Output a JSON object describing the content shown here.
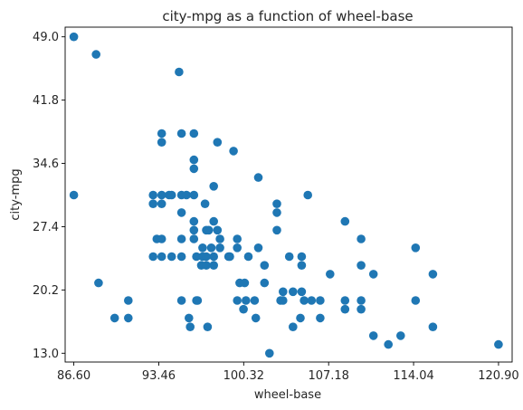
{
  "chart_data": {
    "type": "scatter",
    "title": "city-mpg as a function of wheel-base",
    "xlabel": "wheel-base",
    "ylabel": "city-mpg",
    "xlim": [
      85.9,
      122.0
    ],
    "ylim": [
      12.0,
      50.1
    ],
    "xticks": [
      "86.60",
      "93.46",
      "100.32",
      "107.18",
      "114.04",
      "120.90"
    ],
    "yticks": [
      "13.0",
      "20.2",
      "27.4",
      "34.6",
      "41.8",
      "49.0"
    ],
    "grid": false,
    "marker_color": "#1f77b4",
    "points": [
      [
        86.6,
        49
      ],
      [
        86.6,
        31
      ],
      [
        88.4,
        47
      ],
      [
        88.6,
        21
      ],
      [
        89.9,
        17
      ],
      [
        91.0,
        19
      ],
      [
        91.0,
        17
      ],
      [
        93.0,
        31
      ],
      [
        93.0,
        30
      ],
      [
        93.0,
        24
      ],
      [
        93.3,
        26
      ],
      [
        93.7,
        38
      ],
      [
        93.7,
        37
      ],
      [
        93.7,
        31
      ],
      [
        93.7,
        30
      ],
      [
        93.7,
        26
      ],
      [
        93.7,
        24
      ],
      [
        94.3,
        31
      ],
      [
        94.5,
        31
      ],
      [
        94.5,
        24
      ],
      [
        95.1,
        45
      ],
      [
        95.3,
        38
      ],
      [
        95.3,
        31
      ],
      [
        95.3,
        29
      ],
      [
        95.3,
        26
      ],
      [
        95.3,
        24
      ],
      [
        95.3,
        19
      ],
      [
        95.7,
        31
      ],
      [
        95.9,
        17
      ],
      [
        96.0,
        16
      ],
      [
        96.3,
        38
      ],
      [
        96.3,
        35
      ],
      [
        96.3,
        34
      ],
      [
        96.3,
        31
      ],
      [
        96.3,
        28
      ],
      [
        96.3,
        27
      ],
      [
        96.3,
        26
      ],
      [
        96.5,
        24
      ],
      [
        96.5,
        19
      ],
      [
        96.6,
        19
      ],
      [
        96.9,
        23
      ],
      [
        97.0,
        25
      ],
      [
        97.0,
        24
      ],
      [
        97.2,
        30
      ],
      [
        97.3,
        27
      ],
      [
        97.3,
        24
      ],
      [
        97.3,
        23
      ],
      [
        97.4,
        16
      ],
      [
        97.5,
        27
      ],
      [
        97.7,
        25
      ],
      [
        97.9,
        32
      ],
      [
        97.9,
        28
      ],
      [
        97.9,
        24
      ],
      [
        97.9,
        23
      ],
      [
        98.2,
        37
      ],
      [
        98.2,
        27
      ],
      [
        98.4,
        26
      ],
      [
        98.4,
        25
      ],
      [
        99.1,
        24
      ],
      [
        99.2,
        24
      ],
      [
        99.5,
        36
      ],
      [
        99.8,
        26
      ],
      [
        99.8,
        25
      ],
      [
        99.8,
        19
      ],
      [
        100.0,
        21
      ],
      [
        100.3,
        18
      ],
      [
        100.4,
        21
      ],
      [
        100.5,
        19
      ],
      [
        100.7,
        24
      ],
      [
        101.2,
        19
      ],
      [
        101.3,
        17
      ],
      [
        101.5,
        33
      ],
      [
        101.5,
        25
      ],
      [
        102.0,
        23
      ],
      [
        102.0,
        21
      ],
      [
        102.4,
        13
      ],
      [
        103.0,
        30
      ],
      [
        103.0,
        29
      ],
      [
        103.0,
        27
      ],
      [
        103.3,
        19
      ],
      [
        103.5,
        20
      ],
      [
        103.5,
        19
      ],
      [
        104.0,
        24
      ],
      [
        104.3,
        16
      ],
      [
        104.3,
        20
      ],
      [
        104.9,
        17
      ],
      [
        105.0,
        24
      ],
      [
        105.0,
        23
      ],
      [
        105.0,
        20
      ],
      [
        105.2,
        19
      ],
      [
        105.5,
        31
      ],
      [
        105.8,
        19
      ],
      [
        106.5,
        19
      ],
      [
        106.5,
        17
      ],
      [
        107.3,
        22
      ],
      [
        108.5,
        28
      ],
      [
        108.5,
        19
      ],
      [
        108.5,
        18
      ],
      [
        109.8,
        26
      ],
      [
        109.8,
        23
      ],
      [
        109.8,
        19
      ],
      [
        109.8,
        18
      ],
      [
        110.8,
        22
      ],
      [
        110.8,
        15
      ],
      [
        112.0,
        14
      ],
      [
        113.0,
        15
      ],
      [
        114.2,
        25
      ],
      [
        114.2,
        19
      ],
      [
        115.6,
        22
      ],
      [
        115.6,
        16
      ],
      [
        120.9,
        14
      ]
    ]
  }
}
